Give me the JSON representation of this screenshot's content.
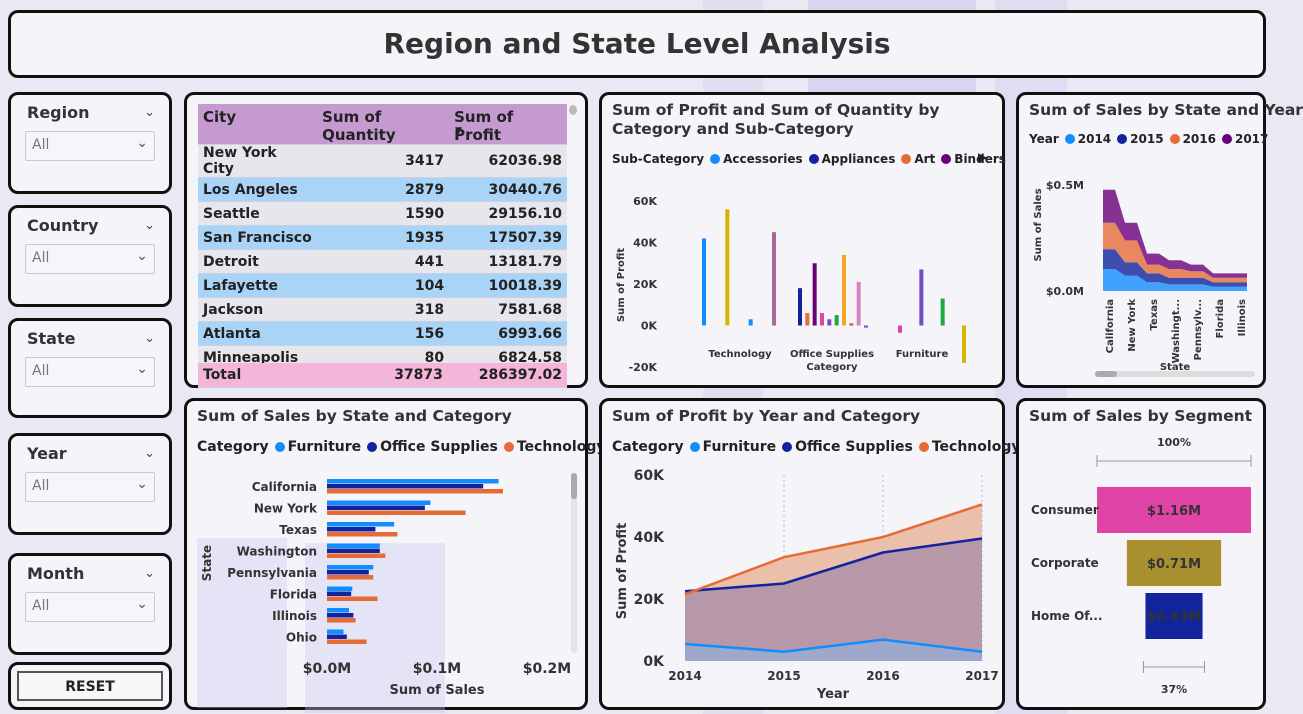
{
  "title": "Region and State Level Analysis",
  "slicers": [
    {
      "label": "Region",
      "value": "All"
    },
    {
      "label": "Country",
      "value": "All"
    },
    {
      "label": "State",
      "value": "All"
    },
    {
      "label": "Year",
      "value": "All"
    },
    {
      "label": "Month",
      "value": "All"
    }
  ],
  "reset_label": "RESET",
  "table": {
    "headers": [
      "City",
      "Sum of Quantity",
      "Sum of Profit"
    ],
    "rows": [
      [
        "New York City",
        "3417",
        "62036.98"
      ],
      [
        "Los Angeles",
        "2879",
        "30440.76"
      ],
      [
        "Seattle",
        "1590",
        "29156.10"
      ],
      [
        "San Francisco",
        "1935",
        "17507.39"
      ],
      [
        "Detroit",
        "441",
        "13181.79"
      ],
      [
        "Lafayette",
        "104",
        "10018.39"
      ],
      [
        "Jackson",
        "318",
        "7581.68"
      ],
      [
        "Atlanta",
        "156",
        "6993.66"
      ],
      [
        "Minneapolis",
        "80",
        "6824.58"
      ]
    ],
    "total": [
      "Total",
      "37873",
      "286397.02"
    ]
  },
  "colors": {
    "furniture": "#118dff",
    "office_supplies": "#12239e",
    "technology": "#e66c37",
    "accent_pink": "#e044a7",
    "gold": "#a89030",
    "navy": "#12239e",
    "purple": "#6b007b"
  },
  "chart_data": [
    {
      "id": "profit_qty_cat",
      "type": "bar",
      "title": "Sum of Profit and Sum of Quantity by Category and Sub-Category",
      "legend_title": "Sub-Category",
      "legend": [
        "Accessories",
        "Appliances",
        "Art",
        "Binders"
      ],
      "xlabel": "Category",
      "ylabel": "Sum of Profit",
      "categories": [
        "Technology",
        "Office Supplies",
        "Furniture"
      ],
      "yticks": [
        "60K",
        "40K",
        "20K",
        "0K",
        "-20K"
      ],
      "ylim": [
        -20000,
        60000
      ],
      "bars": [
        {
          "category": "Technology",
          "color": "#118dff",
          "value": 42000
        },
        {
          "category": "Technology",
          "color": "#d9b300",
          "value": 56000
        },
        {
          "category": "Technology",
          "color": "#118dff",
          "value": 3000
        },
        {
          "category": "Technology",
          "color": "#a66999",
          "value": 45000
        },
        {
          "category": "Office Supplies",
          "color": "#12239e",
          "value": 18000
        },
        {
          "category": "Office Supplies",
          "color": "#e66c37",
          "value": 6000
        },
        {
          "category": "Office Supplies",
          "color": "#6b007b",
          "value": 30000
        },
        {
          "category": "Office Supplies",
          "color": "#e044a7",
          "value": 6000
        },
        {
          "category": "Office Supplies",
          "color": "#744ec2",
          "value": 3000
        },
        {
          "category": "Office Supplies",
          "color": "#1aab40",
          "value": 5000
        },
        {
          "category": "Office Supplies",
          "color": "#f5a623",
          "value": 34000
        },
        {
          "category": "Office Supplies",
          "color": "#d64550",
          "value": 1000
        },
        {
          "category": "Office Supplies",
          "color": "#d982c4",
          "value": 21000
        },
        {
          "category": "Office Supplies",
          "color": "#744ec2",
          "value": -1000
        },
        {
          "category": "Furniture",
          "color": "#e044a7",
          "value": -3500
        },
        {
          "category": "Furniture",
          "color": "#744ec2",
          "value": 27000
        },
        {
          "category": "Furniture",
          "color": "#1aab40",
          "value": 13000
        },
        {
          "category": "Furniture",
          "color": "#d9b300",
          "value": -18000
        }
      ]
    },
    {
      "id": "sales_state_year",
      "type": "area",
      "title": "Sum of Sales by State and Year",
      "legend_title": "Year",
      "legend": [
        "2014",
        "2015",
        "2016",
        "2017"
      ],
      "xlabel": "State",
      "ylabel": "Sum of Sales",
      "categories": [
        "California",
        "New York",
        "Texas",
        "Washingt...",
        "Pennsylv...",
        "Florida",
        "Illinois"
      ],
      "yticks": [
        "$0.5M",
        "$0.0M"
      ],
      "series": [
        {
          "name": "2014",
          "values": [
            0.1,
            0.07,
            0.04,
            0.03,
            0.03,
            0.02,
            0.02
          ]
        },
        {
          "name": "2015",
          "values": [
            0.09,
            0.06,
            0.04,
            0.03,
            0.03,
            0.02,
            0.02
          ]
        },
        {
          "name": "2016",
          "values": [
            0.12,
            0.1,
            0.04,
            0.04,
            0.03,
            0.02,
            0.02
          ]
        },
        {
          "name": "2017",
          "values": [
            0.15,
            0.08,
            0.05,
            0.04,
            0.03,
            0.02,
            0.02
          ]
        }
      ]
    },
    {
      "id": "sales_state_cat",
      "type": "bar",
      "orientation": "horizontal",
      "title": "Sum of Sales by State and Category",
      "legend_title": "Category",
      "legend": [
        "Furniture",
        "Office Supplies",
        "Technology"
      ],
      "xlabel": "Sum of Sales",
      "ylabel": "State",
      "categories": [
        "California",
        "New York",
        "Texas",
        "Washington",
        "Pennsylvania",
        "Florida",
        "Illinois",
        "Ohio"
      ],
      "xticks": [
        "$0.0M",
        "$0.1M",
        "$0.2M"
      ],
      "xlim": [
        0,
        0.2
      ],
      "series": [
        {
          "name": "Furniture",
          "values": [
            0.156,
            0.094,
            0.061,
            0.048,
            0.042,
            0.023,
            0.02,
            0.015
          ]
        },
        {
          "name": "Office Supplies",
          "values": [
            0.142,
            0.089,
            0.044,
            0.048,
            0.038,
            0.022,
            0.024,
            0.018
          ]
        },
        {
          "name": "Technology",
          "values": [
            0.16,
            0.126,
            0.064,
            0.053,
            0.042,
            0.046,
            0.026,
            0.036
          ]
        }
      ]
    },
    {
      "id": "profit_year_cat",
      "type": "area",
      "title": "Sum of Profit by Year and Category",
      "legend_title": "Category",
      "legend": [
        "Furniture",
        "Office Supplies",
        "Technology"
      ],
      "xlabel": "Year",
      "ylabel": "Sum of Profit",
      "x": [
        "2014",
        "2015",
        "2016",
        "2017"
      ],
      "yticks": [
        "60K",
        "40K",
        "20K",
        "0K"
      ],
      "ylim": [
        0,
        60000
      ],
      "series": [
        {
          "name": "Furniture",
          "values": [
            5500,
            3000,
            6900,
            3000
          ]
        },
        {
          "name": "Office Supplies",
          "values": [
            22500,
            25000,
            35000,
            39500
          ]
        },
        {
          "name": "Technology",
          "values": [
            21500,
            33500,
            40000,
            50500
          ]
        }
      ]
    },
    {
      "id": "sales_segment",
      "type": "bar",
      "title": "Sum of Sales by Segment",
      "top_label": "100%",
      "bottom_label": "37%",
      "categories": [
        "Consumer",
        "Corporate",
        "Home Of..."
      ],
      "values": [
        1.16,
        0.71,
        0.43
      ],
      "value_labels": [
        "$1.16M",
        "$0.71M",
        "$0.43M"
      ]
    }
  ]
}
